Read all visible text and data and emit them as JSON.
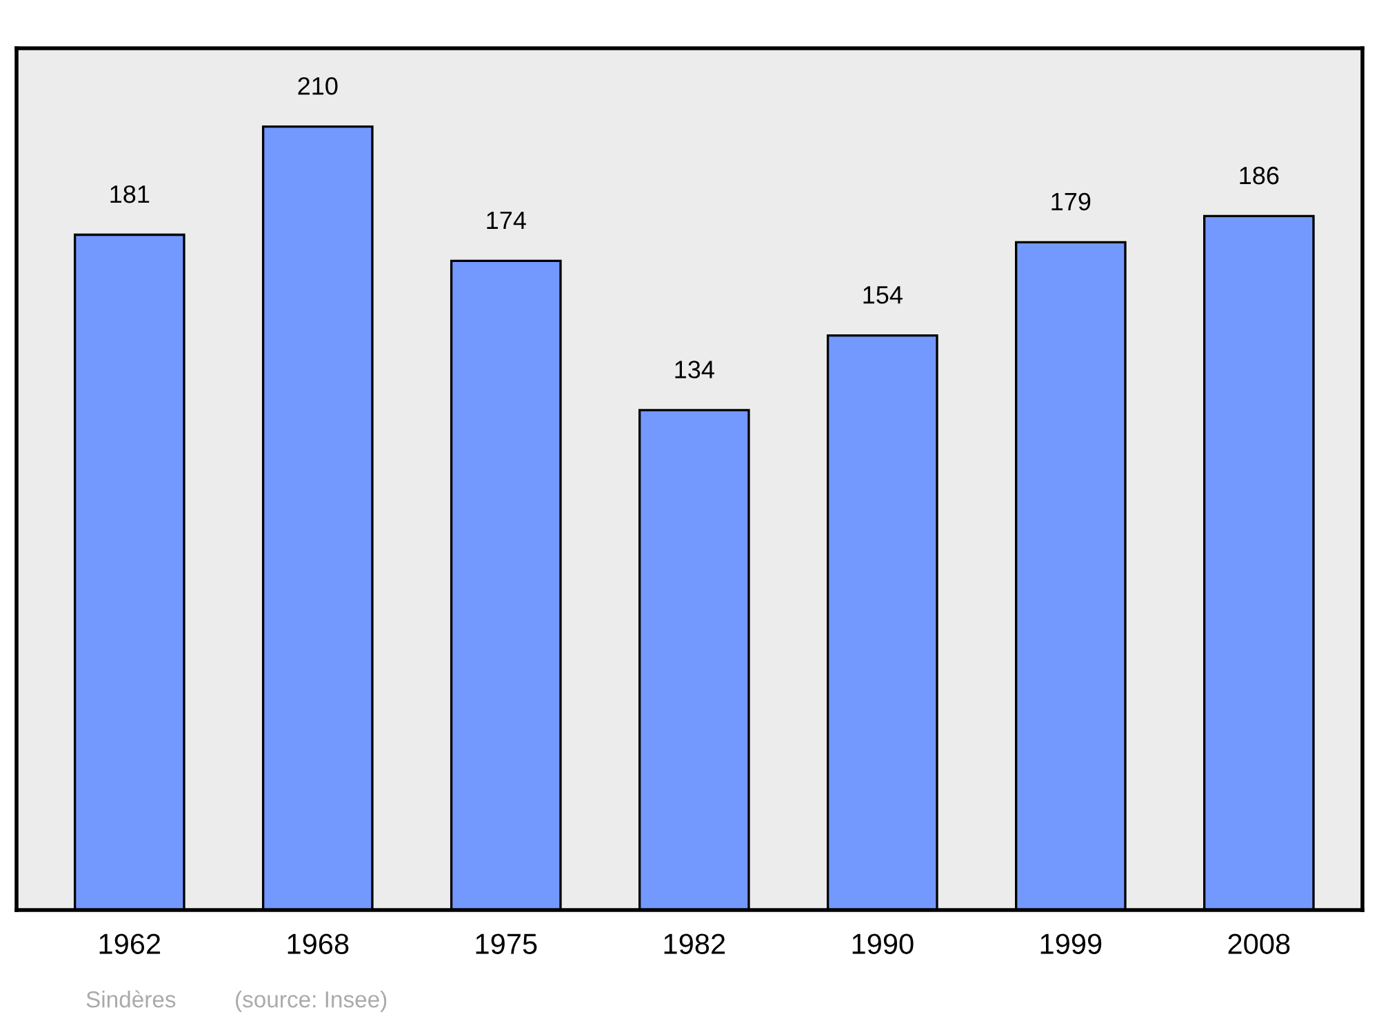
{
  "chart_data": {
    "type": "bar",
    "categories": [
      "1962",
      "1968",
      "1975",
      "1982",
      "1990",
      "1999",
      "2008"
    ],
    "values": [
      181,
      210,
      174,
      134,
      154,
      179,
      186
    ],
    "color": "#7399ff",
    "ylim": [
      0,
      231
    ],
    "data_labels": true,
    "grid": false,
    "annotations": [
      "Sindères",
      "(source: Insee)"
    ]
  }
}
